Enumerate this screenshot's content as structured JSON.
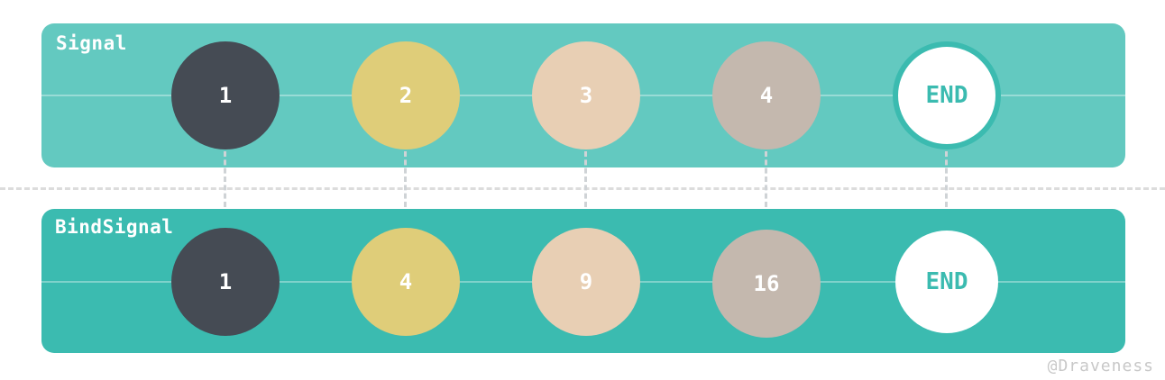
{
  "signal": {
    "label": "Signal",
    "values": [
      "1",
      "2",
      "3",
      "4",
      "END"
    ]
  },
  "bind_signal": {
    "label": "BindSignal",
    "values": [
      "1",
      "4",
      "9",
      "16",
      "END"
    ]
  },
  "credit": "@Draveness",
  "colors": {
    "signal_band": "#63c9c0",
    "bind_band": "#3bbbb0",
    "dark": "#454b54",
    "yellow": "#dfcd79",
    "peach": "#e8cfb4",
    "taupe": "#c4b8ae",
    "end_fill": "#ffffff",
    "end_text": "#3bbbb0",
    "arrow": "#cfd3d6"
  }
}
